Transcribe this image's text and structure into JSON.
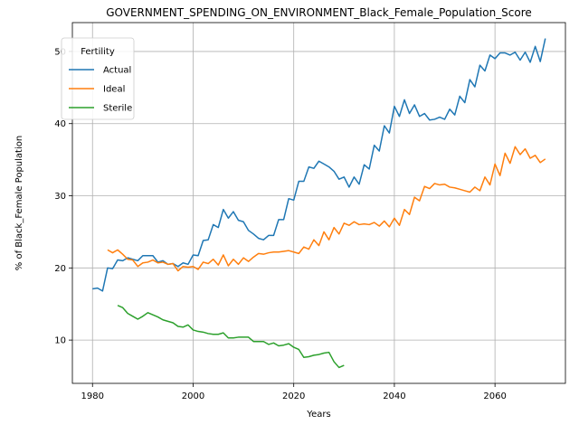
{
  "chart_data": {
    "type": "line",
    "title": "GOVERNMENT_SPENDING_ON_ENVIRONMENT_Black_Female_Population_Score",
    "xlabel": "Years",
    "ylabel": "% of Black_Female Population",
    "xlim": [
      1976,
      2074
    ],
    "ylim": [
      4,
      54
    ],
    "xticks": [
      1980,
      2000,
      2020,
      2040,
      2060
    ],
    "yticks": [
      10,
      20,
      30,
      40,
      50
    ],
    "grid": true,
    "legend": {
      "title": "Fertility",
      "placement": "top-left"
    },
    "series": [
      {
        "name": "Actual",
        "color": "#1f77b4",
        "x": [
          1980,
          1981,
          1982,
          1983,
          1984,
          1985,
          1986,
          1987,
          1988,
          1989,
          1990,
          1991,
          1992,
          1993,
          1994,
          1995,
          1996,
          1997,
          1998,
          1999,
          2000,
          2001,
          2002,
          2003,
          2004,
          2005,
          2006,
          2007,
          2008,
          2009,
          2010,
          2011,
          2012,
          2013,
          2014,
          2015,
          2016,
          2017,
          2018,
          2019,
          2020,
          2021,
          2022,
          2023,
          2024,
          2025,
          2026,
          2027,
          2028,
          2029,
          2030,
          2031,
          2032,
          2033,
          2034,
          2035,
          2036,
          2037,
          2038,
          2039,
          2040,
          2041,
          2042,
          2043,
          2044,
          2045,
          2046,
          2047,
          2048,
          2049,
          2050,
          2051,
          2052,
          2053,
          2054,
          2055,
          2056,
          2057,
          2058,
          2059,
          2060,
          2061,
          2062,
          2063,
          2064,
          2065,
          2066,
          2067,
          2068,
          2069,
          2070
        ],
        "values": [
          17.1,
          17.2,
          16.8,
          20.0,
          19.9,
          21.1,
          21.0,
          21.4,
          21.2,
          21.0,
          21.7,
          21.7,
          21.7,
          20.8,
          21.0,
          20.5,
          20.6,
          20.2,
          20.7,
          20.5,
          21.8,
          21.7,
          23.8,
          23.9,
          26.0,
          25.6,
          28.1,
          26.9,
          27.8,
          26.6,
          26.4,
          25.2,
          24.7,
          24.1,
          23.9,
          24.5,
          24.5,
          26.7,
          26.7,
          29.6,
          29.4,
          32.0,
          32.0,
          34.0,
          33.8,
          34.8,
          34.4,
          34.0,
          33.4,
          32.3,
          32.6,
          31.2,
          32.6,
          31.6,
          34.3,
          33.7,
          37.0,
          36.2,
          39.7,
          38.7,
          42.4,
          41.0,
          43.3,
          41.4,
          42.6,
          41.0,
          41.4,
          40.5,
          40.6,
          40.9,
          40.6,
          42.0,
          41.2,
          43.8,
          42.9,
          46.1,
          45.1,
          48.1,
          47.3,
          49.5,
          49.0,
          49.8,
          49.8,
          49.5,
          49.9,
          48.8,
          49.9,
          48.5,
          50.7,
          48.6,
          51.8
        ]
      },
      {
        "name": "Ideal",
        "color": "#ff7f0e",
        "x": [
          1983,
          1984,
          1985,
          1986,
          1987,
          1988,
          1989,
          1990,
          1991,
          1992,
          1993,
          1994,
          1995,
          1996,
          1997,
          1998,
          1999,
          2000,
          2001,
          2002,
          2003,
          2004,
          2005,
          2006,
          2007,
          2008,
          2009,
          2010,
          2011,
          2012,
          2013,
          2014,
          2015,
          2016,
          2017,
          2018,
          2019,
          2020,
          2021,
          2022,
          2023,
          2024,
          2025,
          2026,
          2027,
          2028,
          2029,
          2030,
          2031,
          2032,
          2033,
          2034,
          2035,
          2036,
          2037,
          2038,
          2039,
          2040,
          2041,
          2042,
          2043,
          2044,
          2045,
          2046,
          2047,
          2048,
          2049,
          2050,
          2051,
          2052,
          2053,
          2054,
          2055,
          2056,
          2057,
          2058,
          2059,
          2060,
          2061,
          2062,
          2063,
          2064,
          2065,
          2066,
          2067,
          2068,
          2069,
          2070
        ],
        "values": [
          22.5,
          22.1,
          22.5,
          21.9,
          21.2,
          21.1,
          20.2,
          20.7,
          20.8,
          21.1,
          20.7,
          20.8,
          20.5,
          20.6,
          19.6,
          20.2,
          20.1,
          20.2,
          19.8,
          20.8,
          20.6,
          21.2,
          20.4,
          21.8,
          20.3,
          21.2,
          20.5,
          21.4,
          20.9,
          21.5,
          22.0,
          21.9,
          22.1,
          22.2,
          22.2,
          22.3,
          22.4,
          22.2,
          22.0,
          22.9,
          22.6,
          23.9,
          23.1,
          25.0,
          23.9,
          25.6,
          24.7,
          26.2,
          25.9,
          26.4,
          26.0,
          26.1,
          26.0,
          26.3,
          25.8,
          26.5,
          25.7,
          26.9,
          25.9,
          28.1,
          27.4,
          29.8,
          29.3,
          31.3,
          31.0,
          31.7,
          31.5,
          31.6,
          31.2,
          31.1,
          30.9,
          30.7,
          30.5,
          31.2,
          30.7,
          32.6,
          31.5,
          34.4,
          32.8,
          35.9,
          34.5,
          36.8,
          35.7,
          36.5,
          35.2,
          35.6,
          34.6,
          35.1
        ]
      },
      {
        "name": "Sterile",
        "color": "#2ca02c",
        "x": [
          1985,
          1986,
          1987,
          1988,
          1989,
          1990,
          1991,
          1992,
          1993,
          1994,
          1995,
          1996,
          1997,
          1998,
          1999,
          2000,
          2001,
          2002,
          2003,
          2004,
          2005,
          2006,
          2007,
          2008,
          2009,
          2010,
          2011,
          2012,
          2013,
          2014,
          2015,
          2016,
          2017,
          2018,
          2019,
          2020,
          2021,
          2022,
          2023,
          2024,
          2025,
          2026,
          2027,
          2028,
          2029,
          2030
        ],
        "values": [
          14.8,
          14.5,
          13.7,
          13.3,
          12.9,
          13.3,
          13.8,
          13.5,
          13.2,
          12.8,
          12.6,
          12.4,
          11.9,
          11.8,
          12.1,
          11.4,
          11.2,
          11.1,
          10.9,
          10.8,
          10.8,
          11.0,
          10.3,
          10.3,
          10.4,
          10.4,
          10.4,
          9.8,
          9.8,
          9.8,
          9.4,
          9.6,
          9.2,
          9.3,
          9.5,
          9.0,
          8.7,
          7.6,
          7.7,
          7.9,
          8.0,
          8.2,
          8.3,
          7.0,
          6.2,
          6.5
        ]
      }
    ]
  }
}
